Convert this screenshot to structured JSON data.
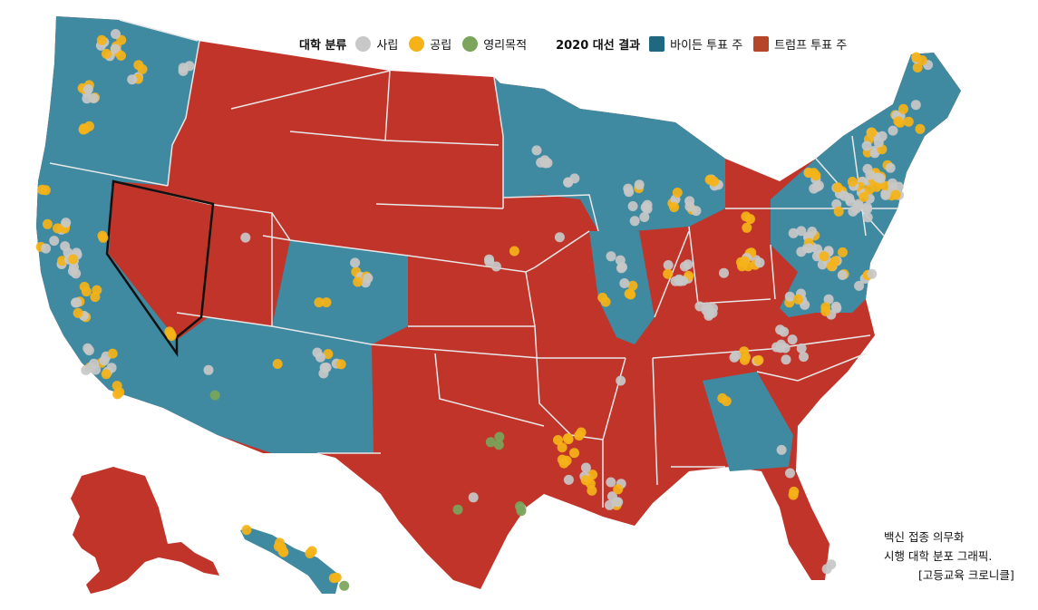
{
  "legend": {
    "college_type_title": "대학 분류",
    "college_types": [
      {
        "label": "사립",
        "color": "#c8c8c8"
      },
      {
        "label": "공립",
        "color": "#f5b318"
      },
      {
        "label": "영리목적",
        "color": "#7aa55a"
      }
    ],
    "election_title": "2020 대선 결과",
    "election_results": [
      {
        "label": "바이든 투표 주",
        "color": "#3a7f96"
      },
      {
        "label": "트럼프 투표 주",
        "color": "#b5462a"
      }
    ]
  },
  "map_colors": {
    "biden": "#3f8aa0",
    "trump": "#c0342a",
    "border": "#e8e8e8",
    "highlight": "#111111"
  },
  "highlighted_state": "Nevada",
  "caption": {
    "line1": "백신 접종 의무화",
    "line2": "시행 대학 분포 그래픽.",
    "source": "[고등교육 크로니클]"
  }
}
